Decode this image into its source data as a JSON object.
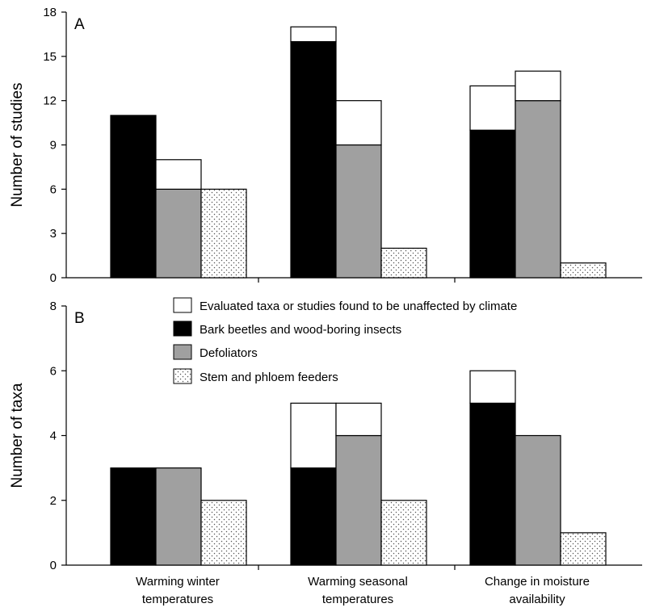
{
  "chart_data": [
    {
      "type": "bar",
      "panel_label": "A",
      "ylabel": "Number of studies",
      "ylim": [
        0,
        18
      ],
      "yticks": [
        0,
        3,
        6,
        9,
        12,
        15,
        18
      ],
      "categories": [
        "Warming winter temperatures",
        "Warming seasonal temperatures",
        "Change in moisture availability"
      ],
      "series": [
        {
          "name": "Bark beetles and wood-boring insects",
          "values": [
            11,
            16,
            10
          ],
          "unaffected": [
            0,
            1,
            3
          ]
        },
        {
          "name": "Defoliators",
          "values": [
            6,
            9,
            12
          ],
          "unaffected": [
            2,
            3,
            2
          ]
        },
        {
          "name": "Stem and phloem feeders",
          "values": [
            6,
            2,
            1
          ],
          "unaffected": [
            0,
            0,
            0
          ]
        }
      ]
    },
    {
      "type": "bar",
      "panel_label": "B",
      "ylabel": "Number of taxa",
      "ylim": [
        0,
        8
      ],
      "yticks": [
        0,
        2,
        4,
        6,
        8
      ],
      "categories": [
        "Warming winter temperatures",
        "Warming seasonal temperatures",
        "Change in moisture availability"
      ],
      "series": [
        {
          "name": "Bark beetles and wood-boring insects",
          "values": [
            3,
            3,
            5
          ],
          "unaffected": [
            0,
            2,
            1
          ]
        },
        {
          "name": "Defoliators",
          "values": [
            3,
            4,
            4
          ],
          "unaffected": [
            0,
            1,
            0
          ]
        },
        {
          "name": "Stem and phloem feeders",
          "values": [
            2,
            2,
            1
          ],
          "unaffected": [
            0,
            0,
            0
          ]
        }
      ]
    }
  ],
  "category_labels": [
    [
      "Warming winter",
      "temperatures"
    ],
    [
      "Warming seasonal",
      "temperatures"
    ],
    [
      "Change in moisture",
      "availability"
    ]
  ],
  "legend": [
    {
      "key": "unaffected",
      "label": "Evaluated taxa or studies found to be unaffected by climate",
      "fill": "#ffffff"
    },
    {
      "key": "bark",
      "label": "Bark beetles and wood-boring insects",
      "fill": "#000000"
    },
    {
      "key": "defol",
      "label": "Defoliators",
      "fill": "#a0a0a0"
    },
    {
      "key": "stem",
      "label": "Stem and phloem feeders",
      "fill": "dots"
    }
  ],
  "colors": {
    "bark": "#000000",
    "defoliators": "#a0a0a0",
    "stem_background": "#ffffff",
    "stem_dots": "#555555",
    "unaffected": "#ffffff",
    "stroke": "#000000"
  }
}
